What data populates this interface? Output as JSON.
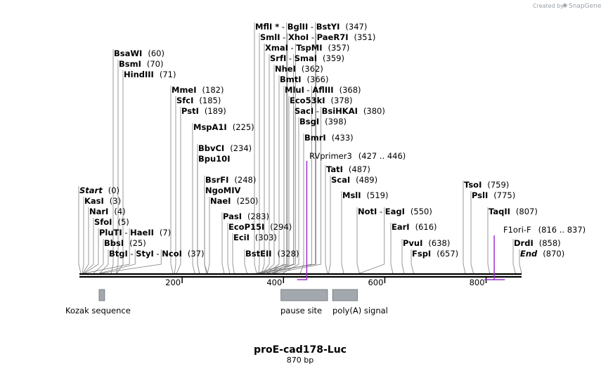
{
  "credit": {
    "prefix": "Created by",
    "brand": "SnapGene"
  },
  "map": {
    "name": "proE-cad178-Luc",
    "length_label": "870 bp",
    "total_bp": 870
  },
  "ruler": [
    {
      "label": "200",
      "bp": 200
    },
    {
      "label": "400",
      "bp": 400
    },
    {
      "label": "600",
      "bp": 600
    },
    {
      "label": "800",
      "bp": 800
    }
  ],
  "colors": {
    "primer": "#9b30d0",
    "feature": "#a3a8ae",
    "feature_border": "#6c7075",
    "line": "#000000",
    "leader": "#808080",
    "credit": "#9aa0a6"
  },
  "features": [
    {
      "label": "Kozak sequence",
      "start": 36,
      "end": 47
    },
    {
      "label": "pause site",
      "start": 395,
      "end": 487
    },
    {
      "label": "poly(A) signal",
      "start": 497,
      "end": 546
    }
  ],
  "primers": [
    {
      "name": "RVprimer3",
      "range": "(427 .. 446)",
      "start": 427,
      "end": 446,
      "direction": "reverse"
    },
    {
      "name": "F1ori-F",
      "range": "(816 .. 837)",
      "start": 816,
      "end": 837,
      "direction": "forward"
    }
  ],
  "sites": [
    {
      "stack": "left",
      "parts": [
        {
          "t": "BsaWI",
          "s": "name"
        },
        {
          "t": "(60)",
          "s": "pos"
        }
      ],
      "bps": [
        60
      ]
    },
    {
      "stack": "left",
      "parts": [
        {
          "t": "BsmI",
          "s": "name"
        },
        {
          "t": "(70)",
          "s": "pos"
        }
      ],
      "bps": [
        70
      ]
    },
    {
      "stack": "left",
      "parts": [
        {
          "t": "HindIII",
          "s": "name"
        },
        {
          "t": "(71)",
          "s": "pos"
        }
      ],
      "bps": [
        71
      ]
    },
    {
      "stack": "left",
      "parts": [
        {
          "t": "MmeI",
          "s": "name"
        },
        {
          "t": "(182)",
          "s": "pos"
        }
      ],
      "bps": [
        182
      ]
    },
    {
      "stack": "left",
      "parts": [
        {
          "t": "SfcI",
          "s": "name"
        },
        {
          "t": "(185)",
          "s": "pos"
        }
      ],
      "bps": [
        185
      ]
    },
    {
      "stack": "left",
      "parts": [
        {
          "t": "PstI",
          "s": "name"
        },
        {
          "t": "(189)",
          "s": "pos"
        }
      ],
      "bps": [
        189
      ]
    },
    {
      "stack": "left",
      "parts": [
        {
          "t": "MspA1I",
          "s": "name"
        },
        {
          "t": "(225)",
          "s": "pos"
        }
      ],
      "bps": [
        225
      ]
    },
    {
      "stack": "left",
      "parts": [
        {
          "t": "BbvCI",
          "s": "name"
        },
        {
          "t": "(234)",
          "s": "pos"
        }
      ],
      "bps": [
        234
      ]
    },
    {
      "stack": "left",
      "parts": [
        {
          "t": "Bpu10I",
          "s": "name"
        }
      ],
      "bps": [
        234
      ]
    },
    {
      "stack": "left",
      "parts": [
        {
          "t": "BsrFI",
          "s": "name"
        },
        {
          "t": "(248)",
          "s": "pos"
        }
      ],
      "bps": [
        248
      ]
    },
    {
      "stack": "left",
      "parts": [
        {
          "t": "NgoMIV",
          "s": "name"
        }
      ],
      "bps": [
        250
      ]
    },
    {
      "stack": "left",
      "parts": [
        {
          "t": "NaeI",
          "s": "name"
        },
        {
          "t": "(250)",
          "s": "pos"
        }
      ],
      "bps": [
        250
      ]
    },
    {
      "stack": "left",
      "parts": [
        {
          "t": "PasI",
          "s": "name"
        },
        {
          "t": "(283)",
          "s": "pos"
        }
      ],
      "bps": [
        283
      ]
    },
    {
      "stack": "left",
      "parts": [
        {
          "t": "EcoP15I",
          "s": "name"
        },
        {
          "t": "(294)",
          "s": "pos"
        }
      ],
      "bps": [
        294
      ]
    },
    {
      "stack": "left",
      "parts": [
        {
          "t": "EciI",
          "s": "name"
        },
        {
          "t": "(303)",
          "s": "pos"
        }
      ],
      "bps": [
        303
      ]
    },
    {
      "stack": "left",
      "parts": [
        {
          "t": "BstEII",
          "s": "name"
        },
        {
          "t": "(328)",
          "s": "pos"
        }
      ],
      "bps": [
        328
      ]
    },
    {
      "stack": "left",
      "parts": [
        {
          "t": "Start",
          "s": "italic"
        },
        {
          "t": "(0)",
          "s": "pos"
        }
      ],
      "bps": [
        0
      ]
    },
    {
      "stack": "left",
      "parts": [
        {
          "t": "KasI",
          "s": "name"
        },
        {
          "t": "(3)",
          "s": "pos"
        }
      ],
      "bps": [
        3
      ]
    },
    {
      "stack": "left",
      "parts": [
        {
          "t": "NarI",
          "s": "name"
        },
        {
          "t": "(4)",
          "s": "pos"
        }
      ],
      "bps": [
        4
      ]
    },
    {
      "stack": "left",
      "parts": [
        {
          "t": "SfoI",
          "s": "name"
        },
        {
          "t": "(5)",
          "s": "pos"
        }
      ],
      "bps": [
        5
      ]
    },
    {
      "stack": "left",
      "parts": [
        {
          "t": "PluTI",
          "s": "name"
        },
        {
          "t": " - ",
          "s": "sep"
        },
        {
          "t": "HaeII",
          "s": "name"
        },
        {
          "t": "(7)",
          "s": "pos"
        }
      ],
      "bps": [
        7,
        7
      ]
    },
    {
      "stack": "left",
      "parts": [
        {
          "t": "BbsI",
          "s": "name"
        },
        {
          "t": "(25)",
          "s": "pos"
        }
      ],
      "bps": [
        25
      ]
    },
    {
      "stack": "left",
      "parts": [
        {
          "t": "BtgI",
          "s": "name"
        },
        {
          "t": " - ",
          "s": "sep"
        },
        {
          "t": "StyI",
          "s": "name"
        },
        {
          "t": " - ",
          "s": "sep"
        },
        {
          "t": "NcoI",
          "s": "name"
        },
        {
          "t": "(37)",
          "s": "pos"
        }
      ],
      "bps": [
        37,
        37,
        37
      ]
    },
    {
      "stack": "mid",
      "parts": [
        {
          "t": "MflI *",
          "s": "name"
        },
        {
          "t": " - ",
          "s": "sep"
        },
        {
          "t": "BglII",
          "s": "name"
        },
        {
          "t": " - ",
          "s": "sep"
        },
        {
          "t": "BstYI",
          "s": "name"
        },
        {
          "t": "(347)",
          "s": "pos"
        }
      ],
      "bps": [
        347,
        347,
        347
      ]
    },
    {
      "stack": "mid",
      "parts": [
        {
          "t": "SmlI",
          "s": "name"
        },
        {
          "t": " - ",
          "s": "sep"
        },
        {
          "t": "XhoI",
          "s": "name"
        },
        {
          "t": " - ",
          "s": "sep"
        },
        {
          "t": "PaeR7I",
          "s": "name"
        },
        {
          "t": "(351)",
          "s": "pos"
        }
      ],
      "bps": [
        351,
        351,
        351
      ]
    },
    {
      "stack": "mid",
      "parts": [
        {
          "t": "XmaI",
          "s": "name"
        },
        {
          "t": " - ",
          "s": "sep"
        },
        {
          "t": "TspMI",
          "s": "name"
        },
        {
          "t": "(357)",
          "s": "pos"
        }
      ],
      "bps": [
        357,
        357
      ]
    },
    {
      "stack": "mid",
      "parts": [
        {
          "t": "SrfI",
          "s": "name"
        },
        {
          "t": " - ",
          "s": "sep"
        },
        {
          "t": "SmaI",
          "s": "name"
        },
        {
          "t": "(359)",
          "s": "pos"
        }
      ],
      "bps": [
        359,
        359
      ]
    },
    {
      "stack": "mid",
      "parts": [
        {
          "t": "NheI",
          "s": "name"
        },
        {
          "t": "(362)",
          "s": "pos"
        }
      ],
      "bps": [
        362
      ]
    },
    {
      "stack": "mid",
      "parts": [
        {
          "t": "BmtI",
          "s": "name"
        },
        {
          "t": "(366)",
          "s": "pos"
        }
      ],
      "bps": [
        366
      ]
    },
    {
      "stack": "mid",
      "parts": [
        {
          "t": "MluI",
          "s": "name"
        },
        {
          "t": " - ",
          "s": "sep"
        },
        {
          "t": "AflIII",
          "s": "name"
        },
        {
          "t": "(368)",
          "s": "pos"
        }
      ],
      "bps": [
        368,
        368
      ]
    },
    {
      "stack": "mid",
      "parts": [
        {
          "t": "Eco53kI",
          "s": "name"
        },
        {
          "t": "(378)",
          "s": "pos"
        }
      ],
      "bps": [
        378
      ]
    },
    {
      "stack": "mid",
      "parts": [
        {
          "t": "SacI",
          "s": "name"
        },
        {
          "t": " - ",
          "s": "sep"
        },
        {
          "t": "BsiHKAI",
          "s": "name"
        },
        {
          "t": "(380)",
          "s": "pos"
        }
      ],
      "bps": [
        380,
        380
      ]
    },
    {
      "stack": "mid",
      "parts": [
        {
          "t": "BsgI",
          "s": "name"
        },
        {
          "t": "(398)",
          "s": "pos"
        }
      ],
      "bps": [
        398
      ]
    },
    {
      "stack": "mid",
      "parts": [
        {
          "t": "BmrI",
          "s": "name"
        },
        {
          "t": "(433)",
          "s": "pos"
        }
      ],
      "bps": [
        433
      ]
    },
    {
      "stack": "right",
      "parts": [
        {
          "t": "TatI",
          "s": "name"
        },
        {
          "t": "(487)",
          "s": "pos"
        }
      ],
      "bps": [
        487
      ]
    },
    {
      "stack": "right",
      "parts": [
        {
          "t": "ScaI",
          "s": "name"
        },
        {
          "t": "(489)",
          "s": "pos"
        }
      ],
      "bps": [
        489
      ]
    },
    {
      "stack": "right",
      "parts": [
        {
          "t": "MslI",
          "s": "name"
        },
        {
          "t": "(519)",
          "s": "pos"
        }
      ],
      "bps": [
        519
      ]
    },
    {
      "stack": "right",
      "parts": [
        {
          "t": "NotI",
          "s": "name"
        },
        {
          "t": " - ",
          "s": "sep"
        },
        {
          "t": "EagI",
          "s": "name"
        },
        {
          "t": "(550)",
          "s": "pos"
        }
      ],
      "bps": [
        550,
        550
      ]
    },
    {
      "stack": "right",
      "parts": [
        {
          "t": "EarI",
          "s": "name"
        },
        {
          "t": "(616)",
          "s": "pos"
        }
      ],
      "bps": [
        616
      ]
    },
    {
      "stack": "right",
      "parts": [
        {
          "t": "PvuI",
          "s": "name"
        },
        {
          "t": "(638)",
          "s": "pos"
        }
      ],
      "bps": [
        638
      ]
    },
    {
      "stack": "right",
      "parts": [
        {
          "t": "FspI",
          "s": "name"
        },
        {
          "t": "(657)",
          "s": "pos"
        }
      ],
      "bps": [
        657
      ]
    },
    {
      "stack": "right",
      "parts": [
        {
          "t": "TsoI",
          "s": "name"
        },
        {
          "t": "(759)",
          "s": "pos"
        }
      ],
      "bps": [
        759
      ]
    },
    {
      "stack": "right",
      "parts": [
        {
          "t": "PslI",
          "s": "name"
        },
        {
          "t": "(775)",
          "s": "pos"
        }
      ],
      "bps": [
        775
      ]
    },
    {
      "stack": "right",
      "parts": [
        {
          "t": "TaqII",
          "s": "name"
        },
        {
          "t": "(807)",
          "s": "pos"
        }
      ],
      "bps": [
        807
      ]
    },
    {
      "stack": "right",
      "parts": [
        {
          "t": "DrdI",
          "s": "name"
        },
        {
          "t": "(858)",
          "s": "pos"
        }
      ],
      "bps": [
        858
      ]
    },
    {
      "stack": "right",
      "parts": [
        {
          "t": "End",
          "s": "italic"
        },
        {
          "t": "(870)",
          "s": "pos"
        }
      ],
      "bps": [
        870
      ]
    }
  ]
}
